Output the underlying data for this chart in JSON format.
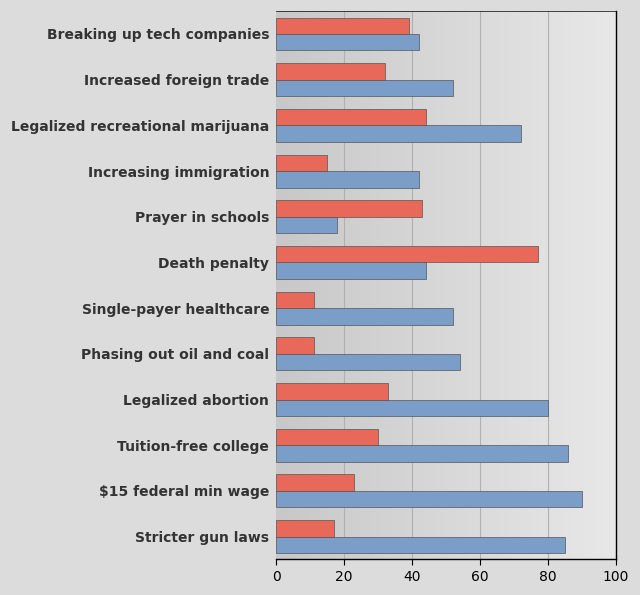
{
  "categories": [
    "Breaking up tech companies",
    "Increased foreign trade",
    "Legalized recreational marijuana",
    "Increasing immigration",
    "Prayer in schools",
    "Death penalty",
    "Single-payer healthcare",
    "Phasing out oil and coal",
    "Legalized abortion",
    "Tuition-free college",
    "$15 federal min wage",
    "Stricter gun laws"
  ],
  "liberal_values": [
    42,
    52,
    72,
    42,
    18,
    44,
    52,
    54,
    80,
    86,
    90,
    85
  ],
  "conservative_values": [
    39,
    32,
    44,
    15,
    43,
    77,
    11,
    11,
    33,
    30,
    23,
    17
  ],
  "liberal_color": "#7B9EC9",
  "conservative_color": "#E8685A",
  "plot_bg_left": "#C8C8C8",
  "plot_bg_right": "#E8E8E8",
  "fig_bg_color": "#DCDCDC",
  "xlim": [
    0,
    100
  ],
  "xticks": [
    0,
    20,
    40,
    60,
    80,
    100
  ],
  "bar_height": 0.36,
  "grid_color": "#B0B0B0",
  "label_fontsize": 10,
  "tick_fontsize": 10
}
